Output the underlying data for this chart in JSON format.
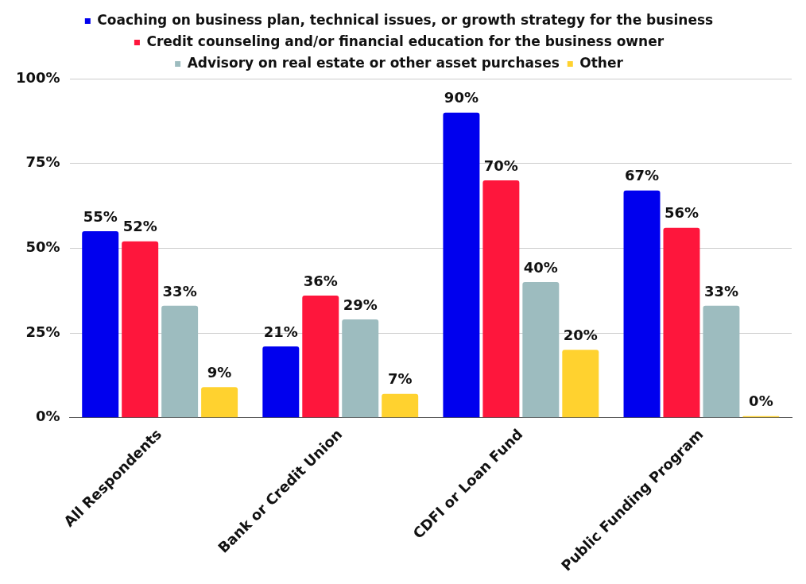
{
  "chart_data": {
    "type": "bar",
    "categories": [
      "All Respondents",
      "Bank or Credit Union",
      "CDFI or Loan Fund",
      "Public Funding Program"
    ],
    "series": [
      {
        "name": "Coaching on business plan, technical issues, or growth strategy for the business",
        "color": "#0000ee",
        "values": [
          55,
          21,
          90,
          67
        ],
        "value_labels": [
          "55%",
          "21%",
          "90%",
          "67%"
        ]
      },
      {
        "name": "Credit counseling and/or financial education for the business owner",
        "color": "#fe163c",
        "values": [
          52,
          36,
          70,
          56
        ],
        "value_labels": [
          "52%",
          "36%",
          "70%",
          "56%"
        ]
      },
      {
        "name": "Advisory on real estate or other asset purchases",
        "color": "#9dbcbf",
        "values": [
          33,
          29,
          40,
          33
        ],
        "value_labels": [
          "33%",
          "29%",
          "40%",
          "33%"
        ]
      },
      {
        "name": "Other",
        "color": "#ffd22f",
        "values": [
          9,
          7,
          20,
          0
        ],
        "value_labels": [
          "9%",
          "7%",
          "20%",
          "0%"
        ]
      }
    ],
    "ylim": [
      0,
      100
    ],
    "yticks": [
      {
        "value": 0,
        "label": "0%"
      },
      {
        "value": 25,
        "label": "25%"
      },
      {
        "value": 50,
        "label": "50%"
      },
      {
        "value": 75,
        "label": "75%"
      },
      {
        "value": 100,
        "label": "100%"
      }
    ],
    "grid": "y",
    "legend": "top"
  }
}
